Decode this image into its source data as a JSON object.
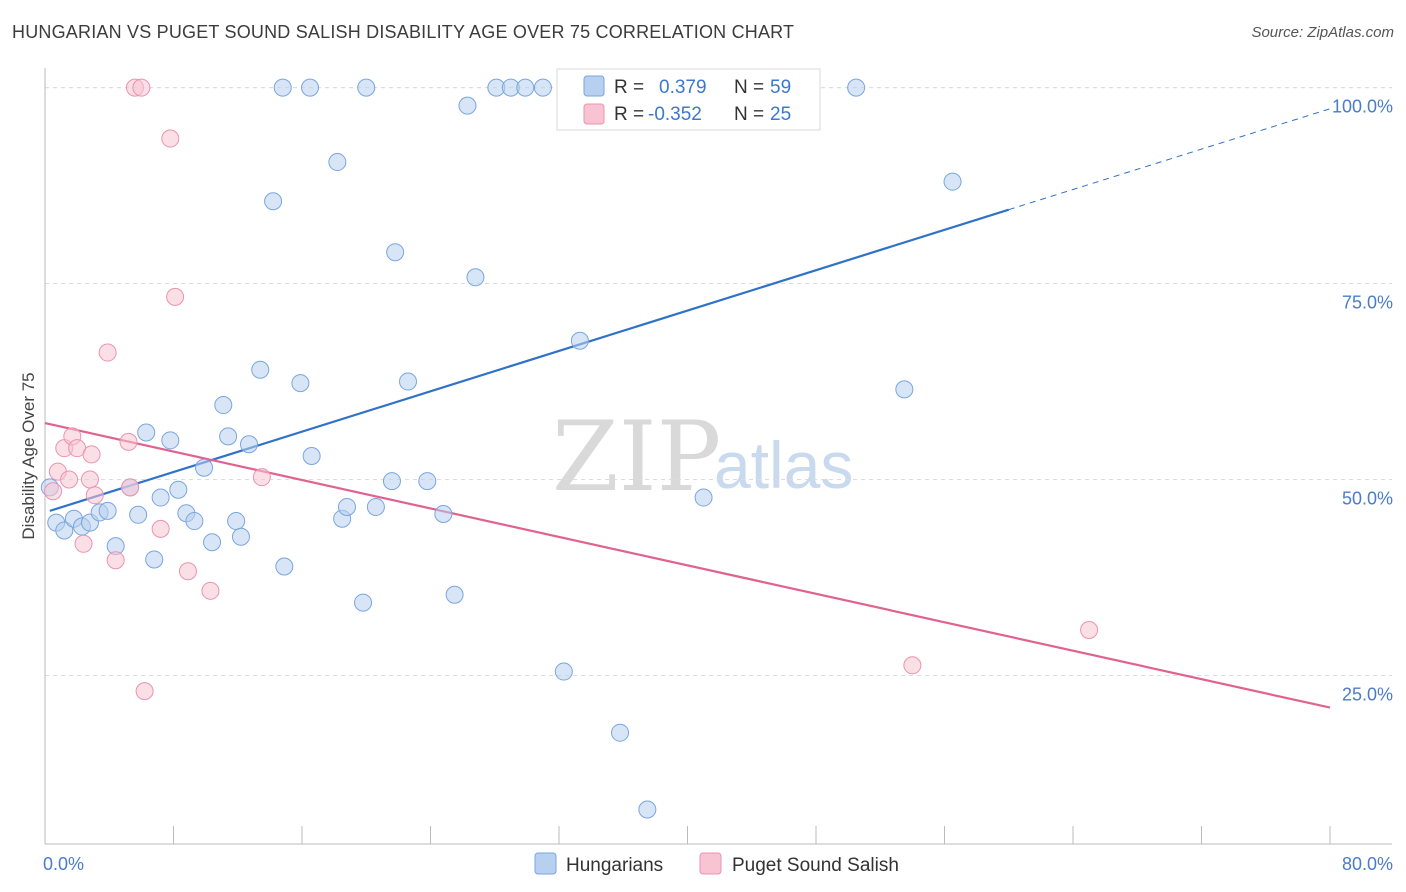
{
  "title": "HUNGARIAN VS PUGET SOUND SALISH DISABILITY AGE OVER 75 CORRELATION CHART",
  "source": "Source: ZipAtlas.com",
  "watermark": {
    "zip": "ZIP",
    "atlas": "atlas"
  },
  "colors": {
    "hungarians_fill": "#b8d0f0",
    "hungarians_stroke": "#7aa6de",
    "hungarians_line": "#2f72c8",
    "salish_fill": "#f8c4d4",
    "salish_stroke": "#ec93b0",
    "salish_line": "#e0628f",
    "grid": "#dcdcdc",
    "tick_text": "#4a7cc9"
  },
  "legend": {
    "rows": [
      {
        "r_label": "R =",
        "r_value": "0.379",
        "n_label": "N =",
        "n_value": "59"
      },
      {
        "r_label": "R =",
        "r_value": "-0.352",
        "n_label": "N =",
        "n_value": "25"
      }
    ]
  },
  "chart_data": {
    "type": "scatter",
    "title": "HUNGARIAN VS PUGET SOUND SALISH DISABILITY AGE OVER 75 CORRELATION CHART",
    "xlabel": "",
    "ylabel": "Disability Age Over 75",
    "xlim": [
      0,
      80
    ],
    "ylim": [
      3.5,
      102.5
    ],
    "x_tick_labels": [
      "0.0%",
      "80.0%"
    ],
    "y_ticks": [
      25,
      50,
      75,
      100
    ],
    "y_tick_labels": [
      "25.0%",
      "50.0%",
      "75.0%",
      "100.0%"
    ],
    "grid": true,
    "legend_placement": "bottom-center",
    "series": [
      {
        "name": "Hungarians",
        "points": [
          [
            0.3,
            49.0
          ],
          [
            0.7,
            44.5
          ],
          [
            1.2,
            43.5
          ],
          [
            1.8,
            45.0
          ],
          [
            2.3,
            44.0
          ],
          [
            2.8,
            44.5
          ],
          [
            3.4,
            45.8
          ],
          [
            3.9,
            46.0
          ],
          [
            4.4,
            41.5
          ],
          [
            5.3,
            49.0
          ],
          [
            5.8,
            45.5
          ],
          [
            6.3,
            56.0
          ],
          [
            6.8,
            39.8
          ],
          [
            7.2,
            47.7
          ],
          [
            7.8,
            55.0
          ],
          [
            8.3,
            48.7
          ],
          [
            8.8,
            45.7
          ],
          [
            9.3,
            44.7
          ],
          [
            9.9,
            51.5
          ],
          [
            10.4,
            42.0
          ],
          [
            11.1,
            59.5
          ],
          [
            11.4,
            55.5
          ],
          [
            11.9,
            44.7
          ],
          [
            12.2,
            42.7
          ],
          [
            12.7,
            54.5
          ],
          [
            13.4,
            64.0
          ],
          [
            14.2,
            85.5
          ],
          [
            14.9,
            38.9
          ],
          [
            15.9,
            62.3
          ],
          [
            16.6,
            53.0
          ],
          [
            18.2,
            90.5
          ],
          [
            18.5,
            45.0
          ],
          [
            18.8,
            46.5
          ],
          [
            19.8,
            34.3
          ],
          [
            20.6,
            46.5
          ],
          [
            21.6,
            49.8
          ],
          [
            21.8,
            79.0
          ],
          [
            22.6,
            62.5
          ],
          [
            23.8,
            49.8
          ],
          [
            24.8,
            45.6
          ],
          [
            25.5,
            35.3
          ],
          [
            26.3,
            97.7
          ],
          [
            26.8,
            75.8
          ],
          [
            28.1,
            100.0
          ],
          [
            29.0,
            100.0
          ],
          [
            29.9,
            100.0
          ],
          [
            32.3,
            25.5
          ],
          [
            33.3,
            67.7
          ],
          [
            35.8,
            17.7
          ],
          [
            37.5,
            7.9
          ],
          [
            41.0,
            47.7
          ],
          [
            50.5,
            100.0
          ],
          [
            53.5,
            61.5
          ],
          [
            56.5,
            88.0
          ],
          [
            14.8,
            100.0
          ],
          [
            16.5,
            100.0
          ],
          [
            20.0,
            100.0
          ],
          [
            31.0,
            100.0
          ],
          [
            40.0,
            100.0
          ]
        ],
        "trend": {
          "x": [
            0.3,
            80.0
          ],
          "y": [
            46.0,
            97.3
          ],
          "solid_until_x": 60.0
        }
      },
      {
        "name": "Puget Sound Salish",
        "points": [
          [
            0.5,
            48.5
          ],
          [
            0.8,
            51.0
          ],
          [
            1.2,
            54.0
          ],
          [
            1.5,
            50.0
          ],
          [
            1.7,
            55.5
          ],
          [
            2.0,
            54.0
          ],
          [
            2.4,
            41.8
          ],
          [
            2.8,
            50.0
          ],
          [
            2.9,
            53.2
          ],
          [
            3.1,
            48.0
          ],
          [
            3.9,
            66.2
          ],
          [
            4.4,
            39.7
          ],
          [
            5.2,
            54.8
          ],
          [
            5.3,
            49.0
          ],
          [
            5.6,
            100.0
          ],
          [
            6.0,
            100.0
          ],
          [
            6.2,
            23.0
          ],
          [
            7.2,
            43.7
          ],
          [
            7.8,
            93.5
          ],
          [
            8.1,
            73.3
          ],
          [
            8.9,
            38.3
          ],
          [
            10.3,
            35.8
          ],
          [
            13.5,
            50.3
          ],
          [
            54.0,
            26.3
          ],
          [
            65.0,
            30.8
          ]
        ],
        "trend": {
          "x": [
            0.0,
            80.0
          ],
          "y": [
            57.2,
            20.9
          ]
        }
      }
    ]
  }
}
